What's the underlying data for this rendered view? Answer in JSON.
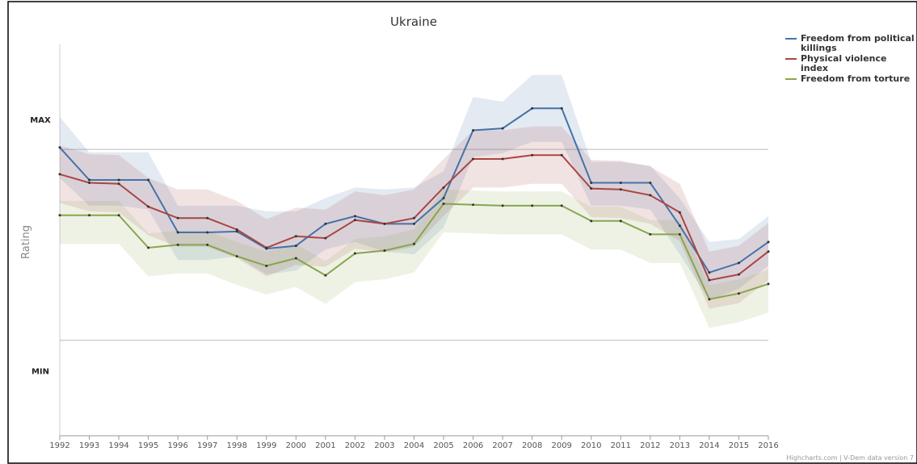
{
  "chart_data": {
    "type": "line",
    "title": "Ukraine",
    "y_label": "Rating",
    "credits": "Highcharts.com | V-Dem data version 7",
    "categories": [
      "1992",
      "1993",
      "1994",
      "1995",
      "1996",
      "1997",
      "1998",
      "1999",
      "2000",
      "2001",
      "2002",
      "2003",
      "2004",
      "2005",
      "2006",
      "2007",
      "2008",
      "2009",
      "2010",
      "2011",
      "2012",
      "2013",
      "2014",
      "2015",
      "2016"
    ],
    "ylim": [
      -2.0,
      2.1
    ],
    "yticks": [
      {
        "value": 1,
        "label": "MAX"
      },
      {
        "value": -1,
        "label": "MIN"
      }
    ],
    "grid": true,
    "legend": "top-right",
    "series": [
      {
        "name": "Freedom from political killings",
        "color": "#4572a7",
        "values": [
          1.02,
          0.68,
          0.68,
          0.68,
          0.13,
          0.13,
          0.14,
          -0.04,
          -0.01,
          0.22,
          0.3,
          0.22,
          0.22,
          0.49,
          1.2,
          1.22,
          1.43,
          1.43,
          0.65,
          0.65,
          0.65,
          0.2,
          -0.29,
          -0.19,
          0.03
        ],
        "upper": [
          1.34,
          0.97,
          0.97,
          0.97,
          0.41,
          0.41,
          0.41,
          0.35,
          0.35,
          0.49,
          0.6,
          0.58,
          0.6,
          0.77,
          1.55,
          1.5,
          1.78,
          1.78,
          0.87,
          0.87,
          0.83,
          0.49,
          0.03,
          0.06,
          0.3
        ],
        "lower": [
          0.7,
          0.41,
          0.41,
          0.37,
          -0.16,
          -0.16,
          -0.12,
          -0.31,
          -0.27,
          -0.05,
          0.03,
          -0.07,
          -0.1,
          0.18,
          0.92,
          0.96,
          1.08,
          1.08,
          0.41,
          0.41,
          0.37,
          -0.1,
          -0.58,
          -0.46,
          -0.22
        ]
      },
      {
        "name": "Physical violence index",
        "color": "#aa4643",
        "values": [
          0.74,
          0.65,
          0.64,
          0.4,
          0.28,
          0.28,
          0.16,
          -0.03,
          0.09,
          0.07,
          0.26,
          0.22,
          0.28,
          0.6,
          0.9,
          0.9,
          0.94,
          0.94,
          0.59,
          0.58,
          0.52,
          0.34,
          -0.37,
          -0.31,
          -0.07
        ],
        "upper": [
          1.04,
          0.95,
          0.94,
          0.7,
          0.58,
          0.58,
          0.46,
          0.27,
          0.39,
          0.37,
          0.56,
          0.52,
          0.58,
          0.9,
          1.2,
          1.2,
          1.24,
          1.24,
          0.89,
          0.88,
          0.82,
          0.64,
          -0.07,
          -0.01,
          0.23
        ],
        "lower": [
          0.44,
          0.35,
          0.34,
          0.1,
          -0.02,
          -0.02,
          -0.14,
          -0.33,
          -0.21,
          -0.23,
          -0.04,
          -0.08,
          -0.02,
          0.3,
          0.6,
          0.6,
          0.64,
          0.64,
          0.29,
          0.28,
          0.22,
          0.04,
          -0.67,
          -0.61,
          -0.37
        ]
      },
      {
        "name": "Freedom from torture",
        "color": "#89a54e",
        "values": [
          0.31,
          0.31,
          0.31,
          -0.03,
          0.0,
          0.0,
          -0.12,
          -0.22,
          -0.14,
          -0.32,
          -0.09,
          -0.06,
          0.01,
          0.43,
          0.42,
          0.41,
          0.41,
          0.41,
          0.25,
          0.25,
          0.11,
          0.11,
          -0.57,
          -0.51,
          -0.41
        ],
        "upper": [
          0.46,
          0.46,
          0.46,
          0.12,
          0.15,
          0.15,
          0.03,
          -0.07,
          0.01,
          -0.17,
          0.06,
          0.09,
          0.16,
          0.58,
          0.57,
          0.56,
          0.56,
          0.56,
          0.4,
          0.4,
          0.26,
          0.26,
          -0.42,
          -0.36,
          -0.26
        ],
        "lower": [
          0.01,
          0.01,
          0.01,
          -0.33,
          -0.3,
          -0.3,
          -0.42,
          -0.52,
          -0.44,
          -0.62,
          -0.39,
          -0.36,
          -0.29,
          0.13,
          0.12,
          0.11,
          0.11,
          0.11,
          -0.05,
          -0.05,
          -0.19,
          -0.19,
          -0.87,
          -0.81,
          -0.71
        ]
      }
    ]
  }
}
